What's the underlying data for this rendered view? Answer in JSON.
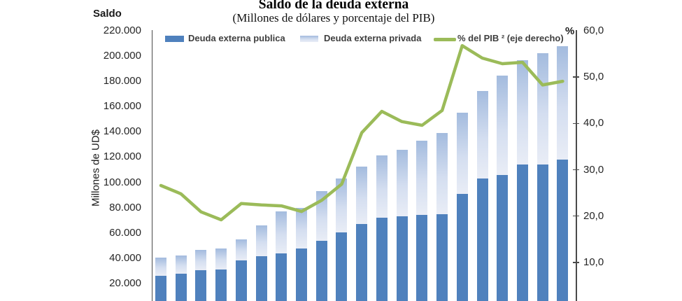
{
  "header": {
    "title": "Saldo de la deuda externa",
    "subtitle": "(Millones de dólares y porcentaje del PIB)",
    "left_axis_corner_label": "Saldo",
    "right_axis_corner_label": "%"
  },
  "colors": {
    "public_bar": "#4F81BD",
    "private_bar_top": "#A3BBDE",
    "private_bar_bottom": "#E9EDF6",
    "pib_line": "#9BBB59",
    "axis": "#4a4a4a",
    "tick_text": "#262626",
    "legend_text": "#3f3f3f"
  },
  "chart_data": {
    "type": "bar",
    "subtype": "stacked-bars-with-line-combo",
    "title": "Saldo de la deuda externa",
    "subtitle": "(Millones de dólares y porcentaje del PIB)",
    "grid": false,
    "legend_position": "top",
    "x_axis_labels_visible": false,
    "series": [
      {
        "name": "Deuda externa publica",
        "type": "bar",
        "stack": "deuda",
        "axis": "left",
        "values": [
          26000,
          27900,
          30300,
          31200,
          38400,
          41400,
          43900,
          47600,
          53600,
          60600,
          67000,
          72200,
          73100,
          74100,
          75000,
          91000,
          103000,
          105800,
          114100,
          114100,
          118000
        ]
      },
      {
        "name": "Deuda externa privada",
        "type": "bar",
        "stack": "deuda",
        "axis": "left",
        "values": [
          14300,
          14200,
          16100,
          16400,
          16600,
          24700,
          32900,
          32400,
          39500,
          42400,
          45700,
          49100,
          52700,
          59000,
          64200,
          64000,
          69300,
          78700,
          82400,
          87900,
          89900
        ]
      },
      {
        "name": "% del PIB ² (eje derecho)",
        "type": "line",
        "axis": "right",
        "values": [
          26.6,
          24.8,
          20.9,
          19.2,
          22.7,
          22.4,
          22.2,
          21.0,
          23.4,
          26.9,
          38.0,
          42.6,
          40.4,
          39.6,
          42.8,
          56.8,
          54.1,
          52.9,
          53.2,
          48.3,
          49.1
        ]
      }
    ],
    "stacked_totals": [
      40300,
      42100,
      46400,
      47600,
      55000,
      66100,
      76800,
      80000,
      93100,
      103000,
      112700,
      121300,
      125800,
      133100,
      139200,
      155000,
      172300,
      184500,
      196500,
      202000,
      207900
    ],
    "left_axis": {
      "corner_title": "Saldo",
      "unit_label": "Millones de UD$",
      "min": 0,
      "max": 220000,
      "ticks": [
        {
          "label": "220.000",
          "value": 220000
        },
        {
          "label": "200.000",
          "value": 200000
        },
        {
          "label": "180.000",
          "value": 180000
        },
        {
          "label": "160.000",
          "value": 160000
        },
        {
          "label": "140.000",
          "value": 140000
        },
        {
          "label": "120.000",
          "value": 120000
        },
        {
          "label": "100.000",
          "value": 100000
        },
        {
          "label": "80.000",
          "value": 80000
        },
        {
          "label": "60.000",
          "value": 60000
        },
        {
          "label": "40.000",
          "value": 40000
        },
        {
          "label": "20.000",
          "value": 20000
        }
      ]
    },
    "right_axis": {
      "corner_title": "%",
      "min": 0,
      "max": 60,
      "ticks": [
        {
          "label": "60,0",
          "value": 60
        },
        {
          "label": "50,0",
          "value": 50
        },
        {
          "label": "40,0",
          "value": 40
        },
        {
          "label": "30,0",
          "value": 30
        },
        {
          "label": "20,0",
          "value": 20
        },
        {
          "label": "10,0",
          "value": 10
        }
      ]
    }
  }
}
